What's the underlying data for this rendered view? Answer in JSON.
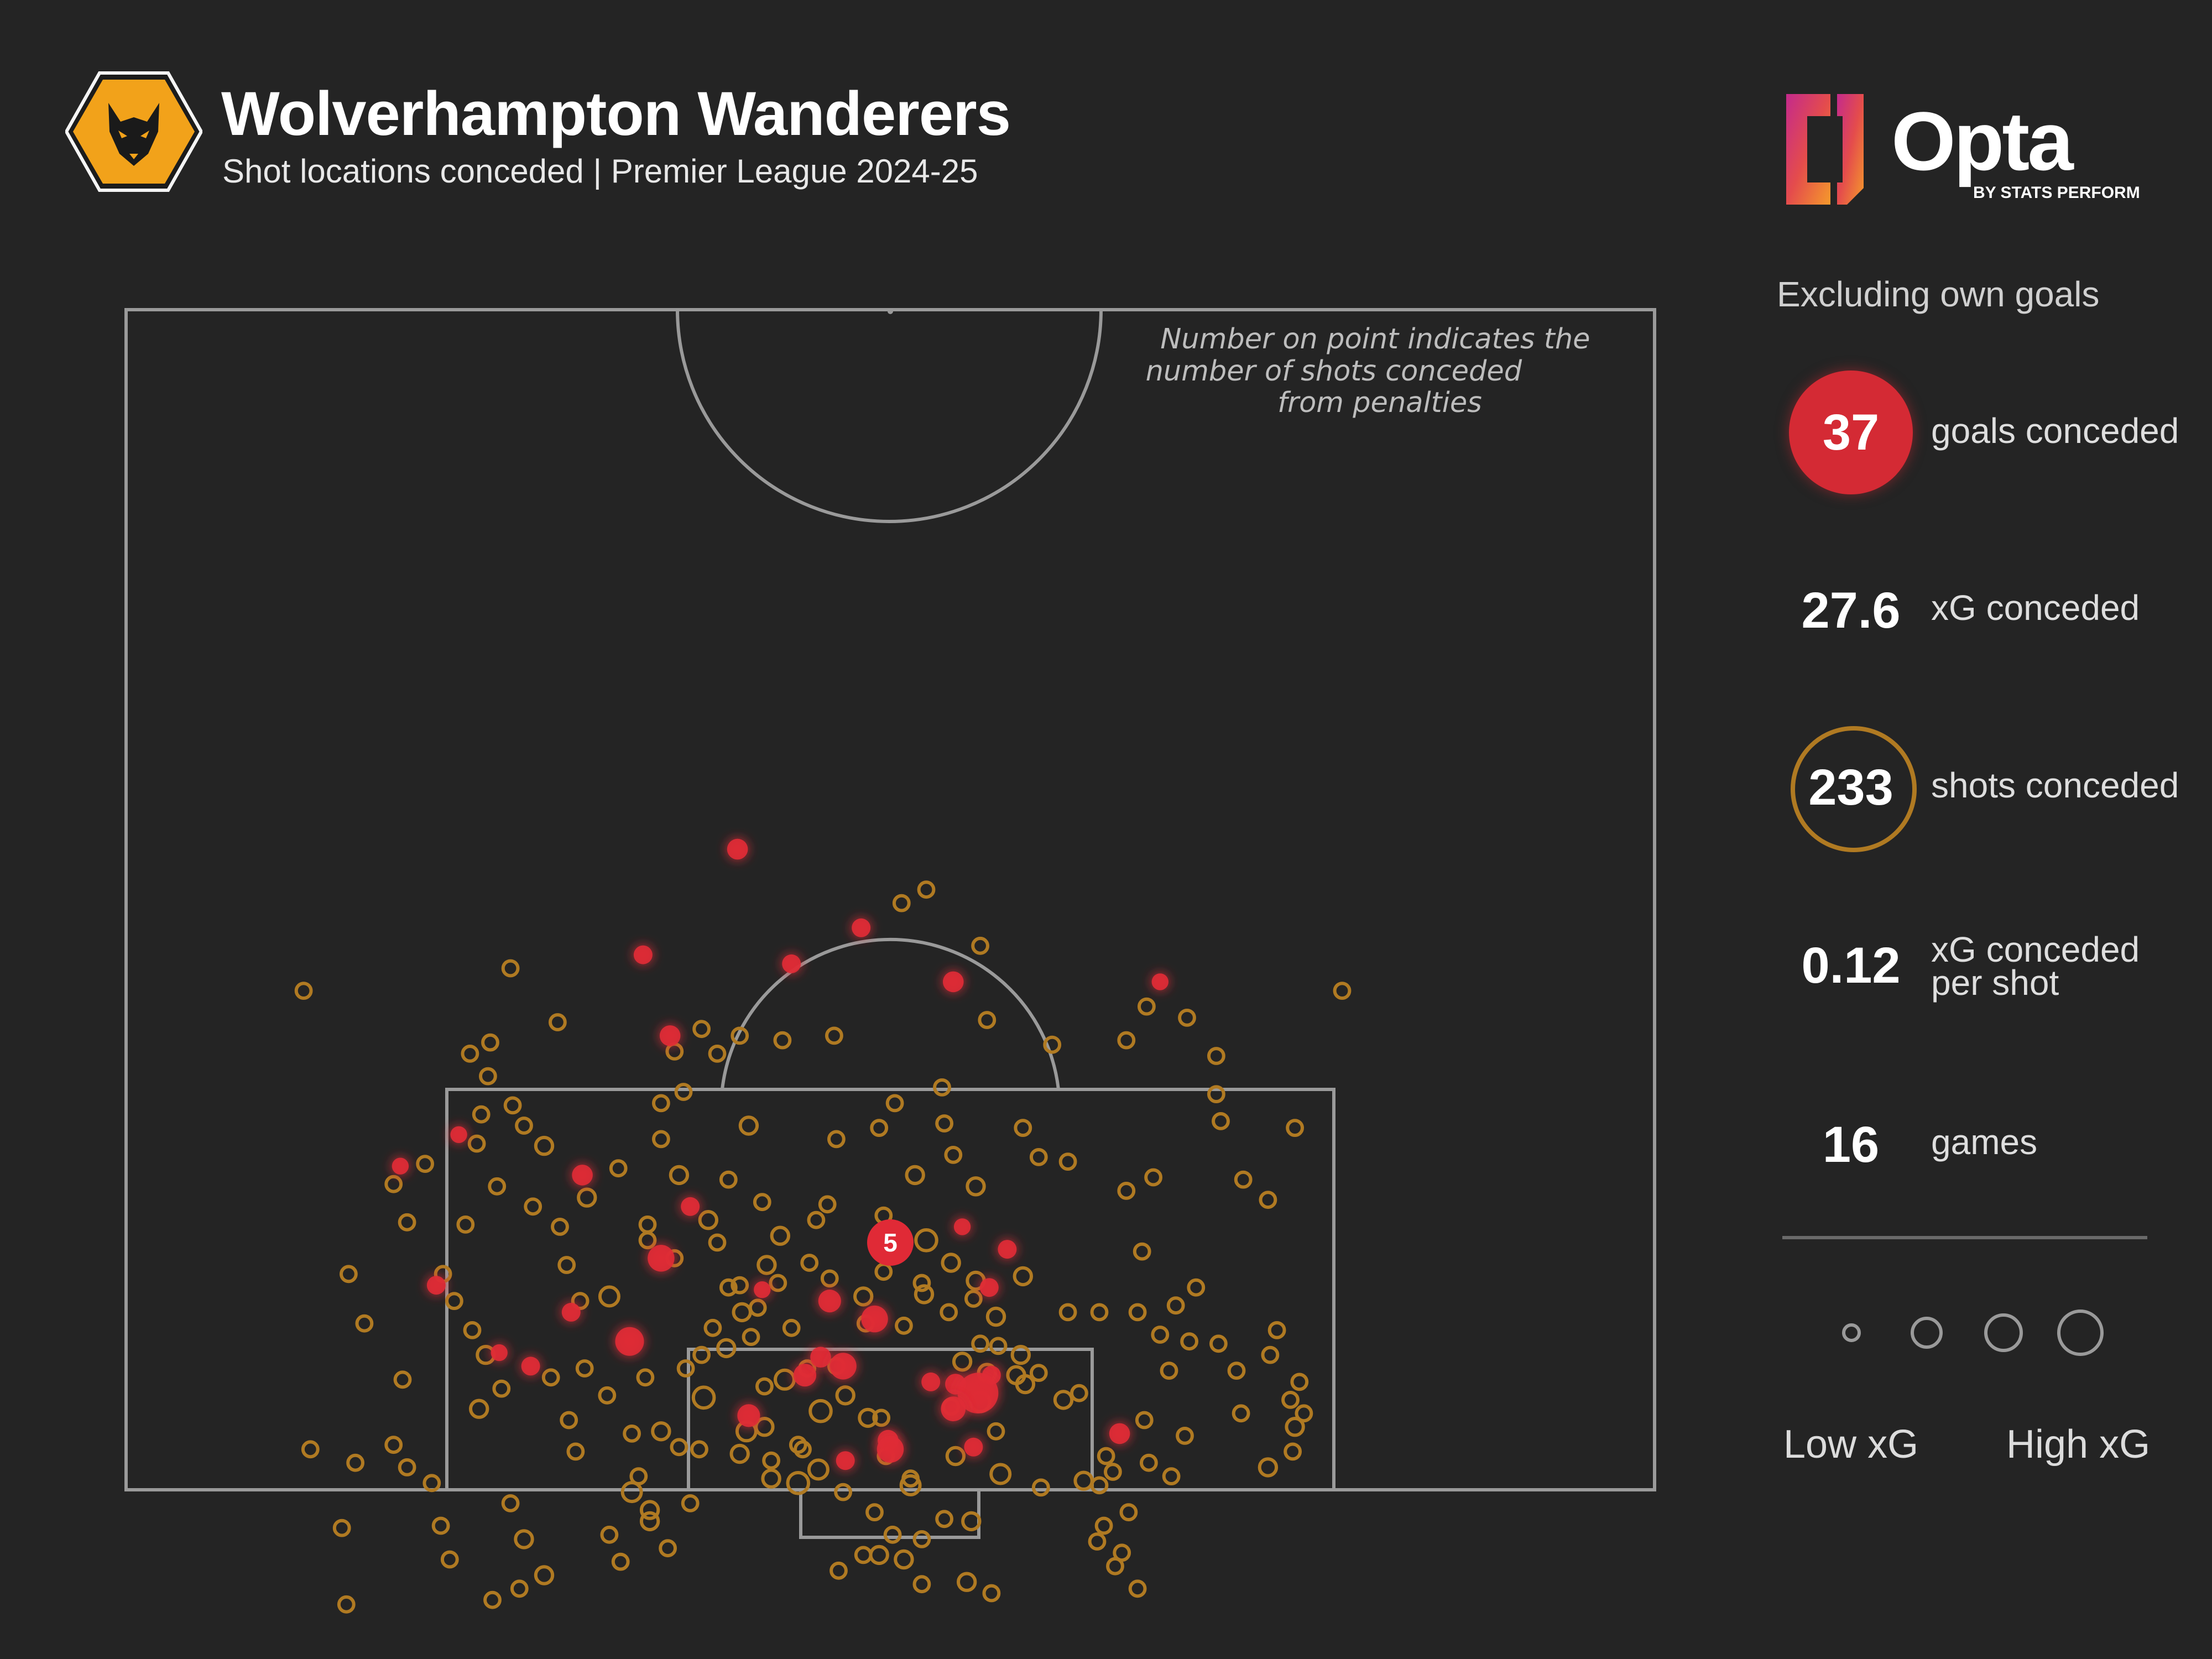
{
  "header": {
    "team": "Wolverhampton Wanderers",
    "subtitle": "Shot locations conceded | Premier League 2024-25"
  },
  "brand": {
    "logo_word": "Opta",
    "logo_sub": "BY STATS PERFORM"
  },
  "note": {
    "lines": [
      "Number on point indicates the",
      "number of shots conceded",
      "from penalties"
    ]
  },
  "panel": {
    "heading": "Excluding own goals",
    "stats": [
      {
        "value": "37",
        "label": "goals conceded"
      },
      {
        "value": "27.6",
        "label": "xG conceded"
      },
      {
        "value": "233",
        "label": "shots conceded"
      },
      {
        "value": "0.12",
        "label_line1": "xG conceded",
        "label_line2": "per shot"
      },
      {
        "value": "16",
        "label": "games"
      }
    ],
    "legend": {
      "low": "Low xG",
      "high": "High xG"
    }
  },
  "colors": {
    "background": "#242424",
    "pitch_lines": "#9a9a9a",
    "goal": "#e02a36",
    "shot": "#b07a22"
  },
  "chart_data": {
    "type": "scatter",
    "x_axis": "pitch width, 0 = left touchline, 68 = right touchline (m)",
    "y_axis": "distance from goal line (m)",
    "size": "xG",
    "penalty_count": 5,
    "goals": [
      [
        27.2,
        28.5,
        0.06
      ],
      [
        23.0,
        23.8,
        0.05
      ],
      [
        32.7,
        25.0,
        0.05
      ],
      [
        24.2,
        20.2,
        0.06
      ],
      [
        14.8,
        15.8,
        0.04
      ],
      [
        29.6,
        23.4,
        0.05
      ],
      [
        36.8,
        22.6,
        0.06
      ],
      [
        46.0,
        22.6,
        0.04
      ],
      [
        20.3,
        14.0,
        0.06
      ],
      [
        25.1,
        12.6,
        0.05
      ],
      [
        23.8,
        10.3,
        0.09
      ],
      [
        19.8,
        7.9,
        0.05
      ],
      [
        22.4,
        6.6,
        0.1
      ],
      [
        28.3,
        8.9,
        0.04
      ],
      [
        38.5,
        5.1,
        0.05
      ],
      [
        36.9,
        4.7,
        0.06
      ],
      [
        27.7,
        3.3,
        0.07
      ],
      [
        16.6,
        6.1,
        0.04
      ],
      [
        13.8,
        9.1,
        0.05
      ],
      [
        12.2,
        14.4,
        0.04
      ],
      [
        18.0,
        5.5,
        0.05
      ],
      [
        37.7,
        1.9,
        0.05
      ],
      [
        33.9,
        2.2,
        0.06
      ],
      [
        34.0,
        1.8,
        0.09
      ],
      [
        32.0,
        1.3,
        0.05
      ],
      [
        38.4,
        9.0,
        0.05
      ],
      [
        37.9,
        4.3,
        0.16
      ],
      [
        30.2,
        5.1,
        0.07
      ],
      [
        30.9,
        5.9,
        0.06
      ],
      [
        31.9,
        5.5,
        0.09
      ],
      [
        37.2,
        11.7,
        0.04
      ],
      [
        44.2,
        2.5,
        0.06
      ],
      [
        31.3,
        8.4,
        0.07
      ],
      [
        33.3,
        7.6,
        0.09
      ],
      [
        39.2,
        10.7,
        0.05
      ],
      [
        35.8,
        4.8,
        0.05
      ],
      [
        36.8,
        3.6,
        0.08
      ]
    ],
    "shots": [
      [
        7.9,
        22.2,
        0.03
      ],
      [
        17.1,
        23.2,
        0.03
      ],
      [
        19.2,
        20.8,
        0.03
      ],
      [
        16.2,
        19.9,
        0.03
      ],
      [
        15.8,
        16.7,
        0.03
      ],
      [
        16.1,
        18.4,
        0.03
      ],
      [
        15.3,
        19.4,
        0.03
      ],
      [
        16.5,
        13.5,
        0.03
      ],
      [
        11.9,
        13.6,
        0.03
      ],
      [
        13.3,
        14.5,
        0.03
      ],
      [
        12.5,
        11.9,
        0.03
      ],
      [
        9.9,
        9.6,
        0.03
      ],
      [
        10.6,
        7.4,
        0.03
      ],
      [
        12.3,
        4.9,
        0.03
      ],
      [
        15.7,
        3.6,
        0.04
      ],
      [
        18.9,
        5.0,
        0.03
      ],
      [
        21.9,
        14.3,
        0.03
      ],
      [
        24.6,
        14.0,
        0.04
      ],
      [
        23.2,
        11.8,
        0.03
      ],
      [
        25.9,
        12.0,
        0.04
      ],
      [
        26.8,
        13.8,
        0.03
      ],
      [
        28.3,
        12.8,
        0.03
      ],
      [
        29.1,
        11.3,
        0.04
      ],
      [
        30.7,
        12.0,
        0.03
      ],
      [
        31.2,
        12.7,
        0.03
      ],
      [
        33.7,
        12.2,
        0.03
      ],
      [
        35.6,
        11.1,
        0.06
      ],
      [
        36.4,
        16.3,
        0.03
      ],
      [
        36.3,
        17.9,
        0.03
      ],
      [
        34.2,
        17.2,
        0.03
      ],
      [
        33.5,
        16.1,
        0.03
      ],
      [
        27.7,
        16.2,
        0.04
      ],
      [
        23.8,
        17.2,
        0.03
      ],
      [
        24.8,
        17.7,
        0.03
      ],
      [
        26.3,
        19.4,
        0.03
      ],
      [
        24.4,
        19.5,
        0.03
      ],
      [
        25.6,
        20.5,
        0.03
      ],
      [
        27.3,
        20.2,
        0.03
      ],
      [
        31.5,
        20.2,
        0.03
      ],
      [
        29.2,
        20.0,
        0.03
      ],
      [
        34.5,
        26.1,
        0.03
      ],
      [
        35.6,
        26.7,
        0.03
      ],
      [
        38.0,
        24.2,
        0.03
      ],
      [
        38.3,
        20.9,
        0.03
      ],
      [
        41.2,
        19.8,
        0.03
      ],
      [
        44.5,
        20.0,
        0.03
      ],
      [
        45.4,
        21.5,
        0.03
      ],
      [
        47.2,
        21.0,
        0.03
      ],
      [
        48.5,
        19.3,
        0.03
      ],
      [
        48.7,
        16.4,
        0.03
      ],
      [
        48.5,
        17.6,
        0.03
      ],
      [
        50.8,
        12.9,
        0.03
      ],
      [
        52.0,
        16.1,
        0.03
      ],
      [
        54.1,
        22.2,
        0.03
      ],
      [
        49.7,
        13.8,
        0.03
      ],
      [
        45.7,
        13.9,
        0.03
      ],
      [
        41.9,
        14.6,
        0.03
      ],
      [
        40.6,
        14.8,
        0.03
      ],
      [
        37.8,
        13.5,
        0.04
      ],
      [
        35.1,
        14.0,
        0.04
      ],
      [
        36.7,
        10.1,
        0.04
      ],
      [
        35.4,
        9.2,
        0.03
      ],
      [
        39.9,
        9.5,
        0.04
      ],
      [
        38.7,
        7.7,
        0.04
      ],
      [
        37.7,
        8.5,
        0.03
      ],
      [
        41.9,
        7.9,
        0.03
      ],
      [
        43.3,
        7.9,
        0.03
      ],
      [
        45.0,
        7.9,
        0.03
      ],
      [
        46.0,
        6.9,
        0.03
      ],
      [
        47.6,
        9.0,
        0.03
      ],
      [
        46.7,
        8.2,
        0.03
      ],
      [
        47.3,
        6.6,
        0.03
      ],
      [
        48.6,
        6.5,
        0.03
      ],
      [
        50.9,
        6.0,
        0.03
      ],
      [
        51.2,
        7.1,
        0.03
      ],
      [
        49.4,
        5.3,
        0.03
      ],
      [
        51.8,
        4.0,
        0.03
      ],
      [
        52.2,
        4.8,
        0.03
      ],
      [
        52.0,
        2.8,
        0.04
      ],
      [
        52.4,
        3.4,
        0.03
      ],
      [
        47.1,
        2.4,
        0.03
      ],
      [
        46.4,
        5.3,
        0.03
      ],
      [
        49.6,
        3.4,
        0.03
      ],
      [
        50.8,
        1.0,
        0.04
      ],
      [
        51.9,
        1.7,
        0.03
      ],
      [
        45.5,
        1.2,
        0.03
      ],
      [
        43.6,
        1.5,
        0.03
      ],
      [
        36.9,
        1.5,
        0.04
      ],
      [
        38.9,
        0.7,
        0.05
      ],
      [
        40.7,
        0.1,
        0.03
      ],
      [
        42.6,
        0.4,
        0.04
      ],
      [
        43.3,
        0.2,
        0.03
      ],
      [
        43.9,
        0.8,
        0.03
      ],
      [
        43.5,
        -1.6,
        0.03
      ],
      [
        43.2,
        -2.3,
        0.03
      ],
      [
        44.0,
        -3.4,
        0.03
      ],
      [
        45.0,
        -4.4,
        0.03
      ],
      [
        44.3,
        -2.8,
        0.03
      ],
      [
        44.6,
        -1.0,
        0.03
      ],
      [
        38.7,
        2.6,
        0.03
      ],
      [
        34.9,
        0.2,
        0.05
      ],
      [
        33.8,
        1.5,
        0.03
      ],
      [
        38.3,
        5.2,
        0.04
      ],
      [
        38.0,
        3.9,
        0.05
      ],
      [
        41.7,
        4.0,
        0.04
      ],
      [
        42.4,
        4.3,
        0.03
      ],
      [
        40.6,
        5.2,
        0.03
      ],
      [
        40.0,
        4.7,
        0.04
      ],
      [
        29.3,
        4.9,
        0.05
      ],
      [
        30.9,
        3.5,
        0.06
      ],
      [
        29.9,
        0.3,
        0.06
      ],
      [
        28.7,
        0.5,
        0.04
      ],
      [
        27.3,
        1.6,
        0.04
      ],
      [
        27.6,
        2.6,
        0.05
      ],
      [
        32.0,
        4.2,
        0.04
      ],
      [
        33.0,
        3.2,
        0.04
      ],
      [
        26.7,
        6.3,
        0.04
      ],
      [
        27.4,
        7.9,
        0.04
      ],
      [
        27.8,
        6.8,
        0.03
      ],
      [
        25.7,
        4.1,
        0.06
      ],
      [
        25.6,
        6.0,
        0.03
      ],
      [
        26.8,
        9.0,
        0.03
      ],
      [
        28.5,
        10.0,
        0.04
      ],
      [
        24.4,
        10.3,
        0.03
      ],
      [
        23.2,
        11.1,
        0.03
      ],
      [
        21.5,
        8.6,
        0.05
      ],
      [
        20.2,
        8.4,
        0.03
      ],
      [
        19.6,
        10.0,
        0.03
      ],
      [
        19.3,
        11.7,
        0.03
      ],
      [
        20.5,
        13.0,
        0.04
      ],
      [
        18.1,
        12.6,
        0.03
      ],
      [
        18.6,
        15.3,
        0.04
      ],
      [
        17.7,
        16.2,
        0.03
      ],
      [
        17.2,
        17.1,
        0.03
      ],
      [
        15.6,
        15.4,
        0.03
      ],
      [
        15.1,
        11.8,
        0.03
      ],
      [
        14.1,
        9.6,
        0.03
      ],
      [
        14.6,
        8.4,
        0.03
      ],
      [
        15.4,
        7.1,
        0.03
      ],
      [
        16.0,
        6.0,
        0.04
      ],
      [
        16.7,
        4.5,
        0.03
      ],
      [
        20.4,
        5.4,
        0.03
      ],
      [
        21.4,
        4.2,
        0.03
      ],
      [
        23.1,
        5.0,
        0.03
      ],
      [
        22.5,
        2.5,
        0.03
      ],
      [
        23.8,
        2.6,
        0.04
      ],
      [
        24.6,
        1.9,
        0.03
      ],
      [
        20.0,
        1.7,
        0.03
      ],
      [
        19.7,
        3.1,
        0.03
      ],
      [
        25.1,
        -0.6,
        0.03
      ],
      [
        23.3,
        -0.9,
        0.04
      ],
      [
        22.5,
        -0.1,
        0.05
      ],
      [
        22.8,
        0.6,
        0.03
      ],
      [
        22.0,
        -3.2,
        0.03
      ],
      [
        23.3,
        -1.4,
        0.04
      ],
      [
        24.1,
        -2.6,
        0.03
      ],
      [
        21.5,
        -2.0,
        0.03
      ],
      [
        17.7,
        -2.2,
        0.04
      ],
      [
        17.1,
        -0.6,
        0.03
      ],
      [
        14.0,
        -1.6,
        0.03
      ],
      [
        16.3,
        -4.9,
        0.03
      ],
      [
        14.4,
        -3.1,
        0.03
      ],
      [
        13.6,
        0.3,
        0.03
      ],
      [
        12.5,
        1.0,
        0.03
      ],
      [
        11.9,
        2.0,
        0.03
      ],
      [
        10.2,
        1.2,
        0.03
      ],
      [
        9.6,
        -1.7,
        0.03
      ],
      [
        8.2,
        1.8,
        0.03
      ],
      [
        9.8,
        -5.1,
        0.03
      ],
      [
        34.9,
        0.5,
        0.03
      ],
      [
        36.4,
        -1.3,
        0.03
      ],
      [
        34.1,
        -2.0,
        0.03
      ],
      [
        35.4,
        -2.2,
        0.03
      ],
      [
        33.5,
        -2.9,
        0.04
      ],
      [
        35.4,
        -4.2,
        0.03
      ],
      [
        37.4,
        -4.1,
        0.04
      ],
      [
        37.6,
        -1.4,
        0.04
      ],
      [
        33.3,
        -1.0,
        0.03
      ],
      [
        31.9,
        -0.1,
        0.03
      ],
      [
        30.8,
        0.9,
        0.05
      ],
      [
        30.1,
        1.8,
        0.03
      ],
      [
        28.7,
        1.3,
        0.03
      ],
      [
        28.4,
        4.6,
        0.03
      ],
      [
        30.3,
        5.4,
        0.03
      ],
      [
        31.6,
        5.5,
        0.03
      ],
      [
        29.6,
        7.2,
        0.03
      ],
      [
        28.1,
        8.1,
        0.03
      ],
      [
        27.3,
        9.1,
        0.03
      ],
      [
        29.0,
        9.2,
        0.03
      ],
      [
        30.4,
        10.1,
        0.03
      ],
      [
        31.3,
        9.4,
        0.03
      ],
      [
        33.7,
        9.7,
        0.03
      ],
      [
        32.8,
        8.6,
        0.04
      ],
      [
        32.9,
        7.4,
        0.03
      ],
      [
        34.6,
        7.3,
        0.03
      ],
      [
        35.5,
        8.7,
        0.04
      ],
      [
        36.6,
        7.9,
        0.03
      ],
      [
        37.8,
        9.3,
        0.04
      ],
      [
        38.0,
        6.5,
        0.03
      ],
      [
        37.2,
        5.7,
        0.04
      ],
      [
        38.8,
        6.4,
        0.03
      ],
      [
        39.8,
        6.0,
        0.04
      ],
      [
        39.6,
        5.1,
        0.04
      ],
      [
        33.6,
        3.2,
        0.03
      ],
      [
        29.9,
        2.0,
        0.03
      ],
      [
        36.7,
        3.7,
        0.03
      ],
      [
        28.4,
        2.8,
        0.04
      ],
      [
        25.5,
        1.8,
        0.03
      ],
      [
        18.6,
        -3.8,
        0.04
      ],
      [
        17.5,
        -4.4,
        0.03
      ],
      [
        32.8,
        -2.9,
        0.03
      ],
      [
        31.7,
        -3.6,
        0.03
      ],
      [
        34.6,
        -3.1,
        0.04
      ],
      [
        44.5,
        13.3,
        0.03
      ],
      [
        38.5,
        -4.6,
        0.03
      ],
      [
        26.1,
        7.2,
        0.03
      ],
      [
        24.9,
        5.4,
        0.03
      ],
      [
        26.3,
        11.0,
        0.03
      ],
      [
        45.2,
        10.6,
        0.03
      ],
      [
        39.9,
        16.1,
        0.03
      ],
      [
        36.8,
        14.9,
        0.03
      ],
      [
        45.3,
        3.1,
        0.03
      ],
      [
        23.8,
        15.6,
        0.03
      ],
      [
        31.6,
        15.6,
        0.03
      ],
      [
        46.5,
        0.6,
        0.03
      ]
    ],
    "penalty_marker": {
      "x": 34,
      "y": 11,
      "label": "5"
    }
  }
}
